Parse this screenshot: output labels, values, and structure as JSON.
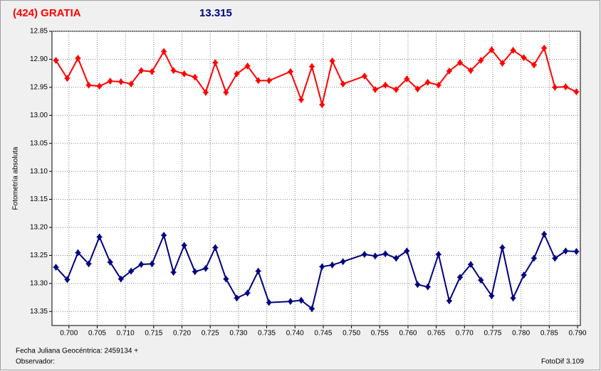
{
  "chart_data": {
    "type": "line",
    "title": "(424) GRATIA",
    "subtitle": "13.315",
    "y_label": "Fotometría absoluta",
    "x_label": "Fecha Juliana Geocéntrica: 2459134 +",
    "observer_label": "Observador:",
    "software": "FotoDif 3.109",
    "y_inverted": true,
    "grid": true,
    "xlim": [
      0.697,
      0.7905
    ],
    "ylim": [
      12.85,
      13.375
    ],
    "xticks": [
      {
        "value": 0.7,
        "label": "0.700"
      },
      0.705,
      {
        "value": 0.71,
        "label": "0.710"
      },
      0.715,
      {
        "value": 0.72,
        "label": "0.720"
      },
      0.725,
      {
        "value": 0.73,
        "label": "0.730"
      },
      0.735,
      {
        "value": 0.74,
        "label": "0.740"
      },
      0.745,
      {
        "value": 0.75,
        "label": "0.750"
      },
      0.755,
      {
        "value": 0.76,
        "label": "0.760"
      },
      0.765,
      {
        "value": 0.77,
        "label": "0.770"
      },
      0.775,
      {
        "value": 0.78,
        "label": "0.780"
      },
      0.785,
      {
        "value": 0.79,
        "label": "0.790"
      }
    ],
    "yticks": [
      12.85,
      {
        "value": 12.9,
        "label": "12.90"
      },
      12.95,
      {
        "value": 13.0,
        "label": "13.00"
      },
      13.05,
      {
        "value": 13.1,
        "label": "13.10"
      },
      13.15,
      {
        "value": 13.2,
        "label": "13.20"
      },
      13.25,
      {
        "value": 13.3,
        "label": "13.30"
      },
      13.35
    ],
    "x": [
      0.6977,
      0.6997,
      0.7016,
      0.7035,
      0.7054,
      0.7073,
      0.7092,
      0.711,
      0.7128,
      0.7147,
      0.7168,
      0.7185,
      0.7204,
      0.7223,
      0.7242,
      0.7259,
      0.7278,
      0.7297,
      0.7316,
      0.7335,
      0.7354,
      0.7392,
      0.7411,
      0.743,
      0.7448,
      0.7466,
      0.7485,
      0.7523,
      0.7542,
      0.756,
      0.7579,
      0.7598,
      0.7617,
      0.7635,
      0.7654,
      0.7673,
      0.7692,
      0.7711,
      0.7729,
      0.7748,
      0.7767,
      0.7786,
      0.7805,
      0.7823,
      0.7841,
      0.786,
      0.7879,
      0.7898
    ],
    "series": [
      {
        "color": "#ff0000",
        "values": [
          12.902,
          12.934,
          12.898,
          12.946,
          12.948,
          12.939,
          12.94,
          12.944,
          12.92,
          12.922,
          12.886,
          12.92,
          12.926,
          12.932,
          12.959,
          12.906,
          12.959,
          12.926,
          12.912,
          12.938,
          12.938,
          12.922,
          12.972,
          12.913,
          12.981,
          12.903,
          12.944,
          12.93,
          12.954,
          12.946,
          12.954,
          12.935,
          12.953,
          12.941,
          12.946,
          12.921,
          12.906,
          12.92,
          12.902,
          12.883,
          12.907,
          12.884,
          12.897,
          12.91,
          12.88,
          12.95,
          12.949,
          12.958
        ]
      },
      {
        "color": "#000080",
        "values": [
          13.271,
          13.293,
          13.245,
          13.265,
          13.217,
          13.262,
          13.292,
          13.278,
          13.266,
          13.265,
          13.214,
          13.28,
          13.232,
          13.279,
          13.273,
          13.236,
          13.292,
          13.326,
          13.317,
          13.278,
          13.334,
          13.332,
          13.33,
          13.345,
          13.27,
          13.267,
          13.261,
          13.248,
          13.251,
          13.247,
          13.255,
          13.242,
          13.302,
          13.306,
          13.248,
          13.331,
          13.289,
          13.266,
          13.294,
          13.322,
          13.236,
          13.326,
          13.285,
          13.255,
          13.212,
          13.255,
          13.242,
          13.243
        ]
      }
    ]
  }
}
